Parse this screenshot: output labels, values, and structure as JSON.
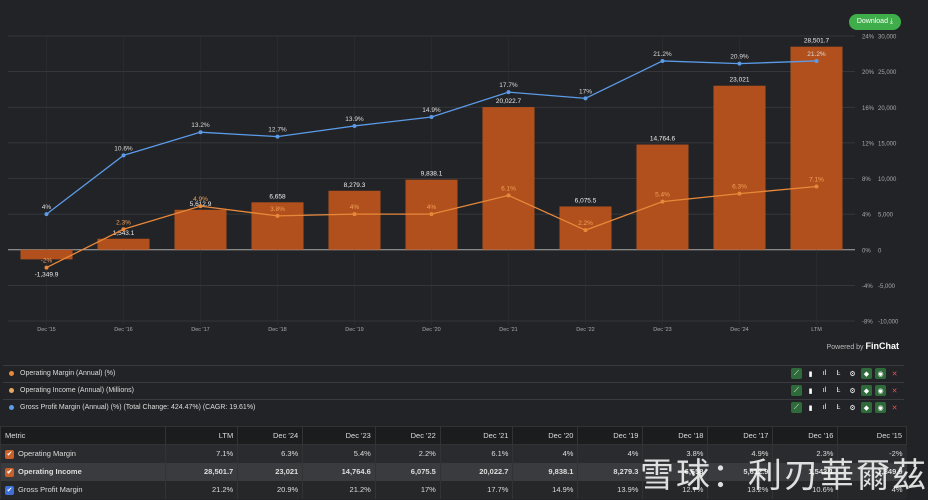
{
  "header": {
    "download_label": "Download ⤓"
  },
  "powered": {
    "prefix": "Powered by",
    "brand": "FinChat"
  },
  "chart_data": {
    "type": "bar+line",
    "categories": [
      "Dec '15",
      "Dec '16",
      "Dec '17",
      "Dec '18",
      "Dec '19",
      "Dec '20",
      "Dec '21",
      "Dec '22",
      "Dec '23",
      "Dec '24",
      "LTM"
    ],
    "series": [
      {
        "name": "Operating Income (Annual) (Millions)",
        "type": "bar",
        "axis": "right",
        "color": "#b1501c",
        "values": [
          -1349.9,
          1543.1,
          5612.9,
          6658,
          8279.3,
          9838.1,
          20022.7,
          6075.5,
          14764.6,
          23021,
          28501.7
        ],
        "labels": [
          "-1,349.9",
          "1,543.1",
          "5,612.9",
          "6,658",
          "8,279.3",
          "9,838.1",
          "20,022.7",
          "6,075.5",
          "14,764.6",
          "23,021",
          "28,501.7"
        ]
      },
      {
        "name": "Operating Margin (Annual) (%)",
        "type": "line",
        "axis": "left",
        "color": "#e8883a",
        "values": [
          -2,
          2.3,
          4.9,
          3.8,
          4,
          4,
          6.1,
          2.2,
          5.4,
          6.3,
          7.1
        ],
        "labels": [
          "-2%",
          "2.3%",
          "4.9%",
          "3.8%",
          "4%",
          "4%",
          "6.1%",
          "2.2%",
          "5.4%",
          "6.3%",
          "7.1%"
        ]
      },
      {
        "name": "Gross Profit Margin (Annual) (%)",
        "type": "line",
        "axis": "left",
        "color": "#5b9be8",
        "values": [
          4,
          10.6,
          13.2,
          12.7,
          13.9,
          14.9,
          17.7,
          17,
          21.2,
          20.9,
          21.2
        ],
        "labels": [
          "4%",
          "10.6%",
          "13.2%",
          "12.7%",
          "13.9%",
          "14.9%",
          "17.7%",
          "17%",
          "21.2%",
          "20.9%",
          "21.2%"
        ]
      }
    ],
    "y_pct_ticks": [
      "24%",
      "20%",
      "16%",
      "12%",
      "8%",
      "4%",
      "0%",
      "-4%",
      "-8%"
    ],
    "y_val_ticks": [
      "30,000",
      "25,000",
      "20,000",
      "15,000",
      "10,000",
      "5,000",
      "0",
      "-5,000",
      "-10,000"
    ],
    "ylim_pct": [
      -8,
      24
    ],
    "ylim_val": [
      -10000,
      30000
    ],
    "grid": true
  },
  "legend": [
    {
      "label": "Operating Margin (Annual) (%)",
      "color": "#e8883a"
    },
    {
      "label": "Operating Income (Annual) (Millions)",
      "color": "#e8a860"
    },
    {
      "label": "Gross Profit Margin (Annual) (%) (Total Change: 424.47%) (CAGR: 19.61%)",
      "color": "#5b9be8"
    }
  ],
  "table": {
    "headers": [
      "Metric",
      "LTM",
      "Dec '24",
      "Dec '23",
      "Dec '22",
      "Dec '21",
      "Dec '20",
      "Dec '19",
      "Dec '18",
      "Dec '17",
      "Dec '16",
      "Dec '15"
    ],
    "rows": [
      {
        "name": "Operating Margin",
        "color": "#c8602a",
        "cells": [
          "7.1%",
          "6.3%",
          "5.4%",
          "2.2%",
          "6.1%",
          "4%",
          "4%",
          "3.8%",
          "4.9%",
          "2.3%",
          "-2%"
        ]
      },
      {
        "name": "Operating Income",
        "color": "#c8602a",
        "cells": [
          "28,501.7",
          "23,021",
          "14,764.6",
          "6,075.5",
          "20,022.7",
          "9,838.1",
          "8,279.3",
          "6,658",
          "5,612.9",
          "1,543.1",
          "-1,349.9"
        ]
      },
      {
        "name": "Gross Profit Margin",
        "color": "#3f6fd8",
        "cells": [
          "21.2%",
          "20.9%",
          "21.2%",
          "17%",
          "17.7%",
          "14.9%",
          "13.9%",
          "12.7%",
          "13.2%",
          "10.6%",
          "4%"
        ]
      }
    ]
  },
  "watermark": "雪球：利刃華爾茲"
}
